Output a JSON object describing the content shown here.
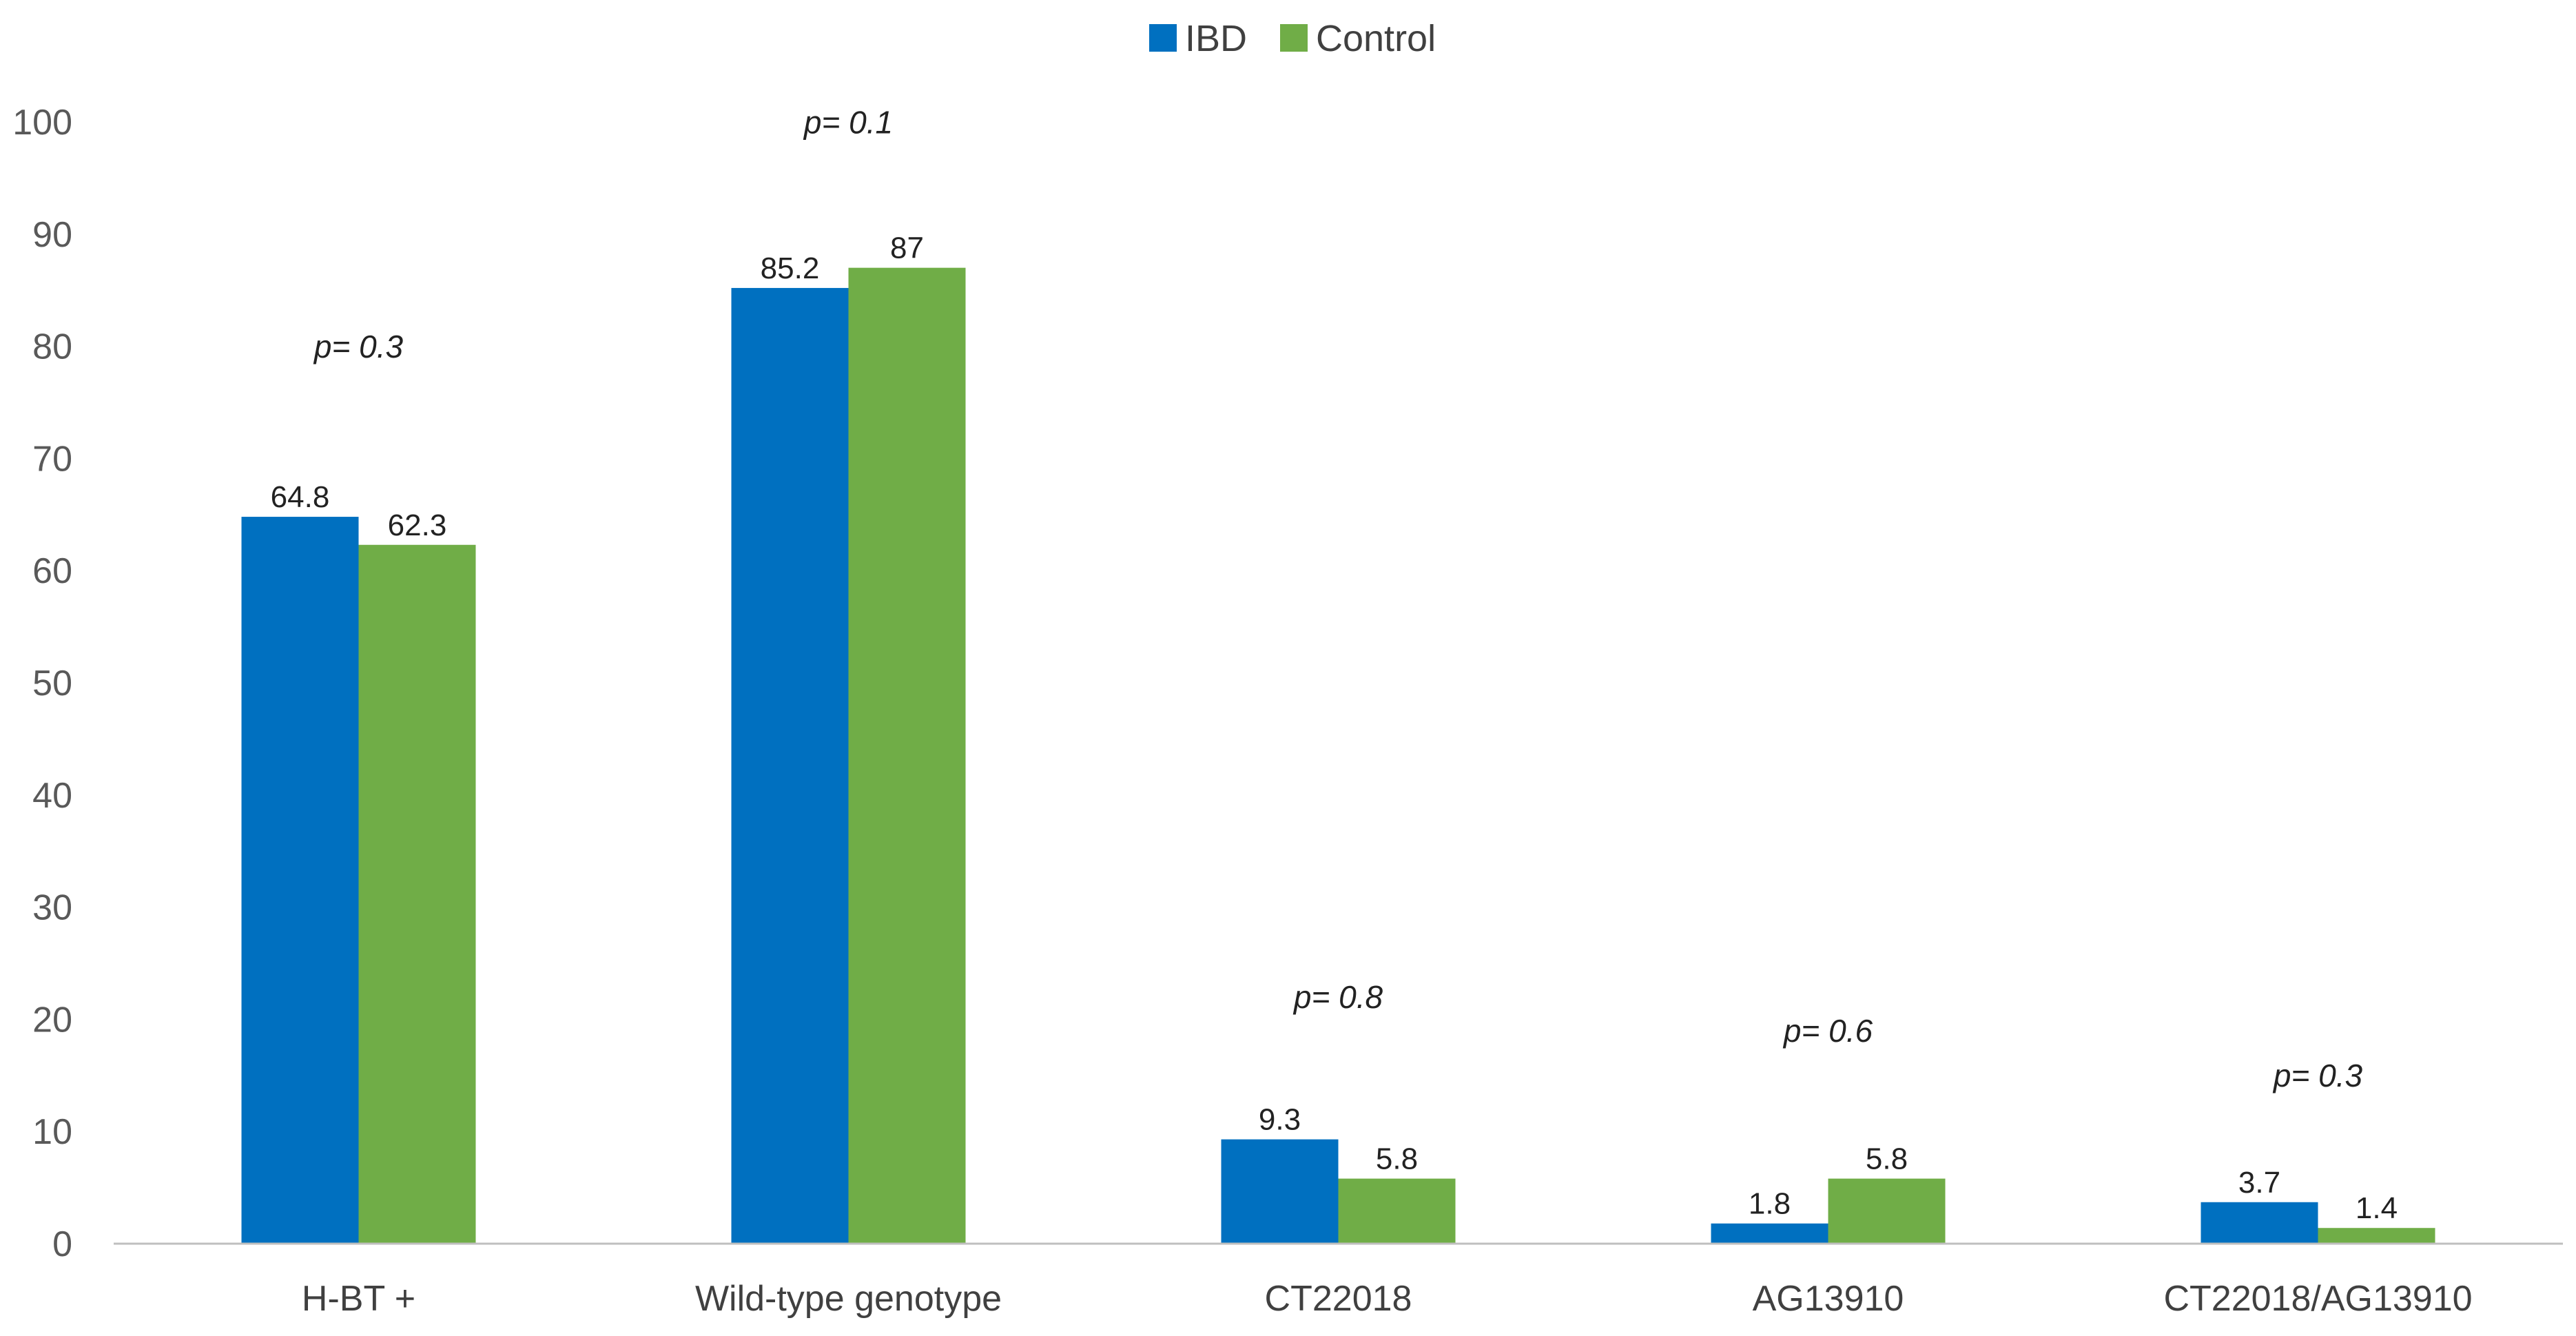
{
  "chart_data": {
    "type": "bar",
    "categories": [
      "H-BT +",
      "Wild-type genotype",
      "CT22018",
      "AG13910",
      "CT22018/AG13910"
    ],
    "series": [
      {
        "name": "IBD",
        "values": [
          64.8,
          85.2,
          9.3,
          1.8,
          3.7
        ],
        "color": "#0070C0"
      },
      {
        "name": "Control",
        "values": [
          62.3,
          87,
          5.8,
          5.8,
          1.4
        ],
        "color": "#70AD47"
      }
    ],
    "data_labels": [
      [
        "64.8",
        "85.2",
        "9.3",
        "1.8",
        "3.7"
      ],
      [
        "62.3",
        "87",
        "5.8",
        "5.8",
        "1.4"
      ]
    ],
    "p_values": [
      "0.3",
      "0.1",
      "0.8",
      "0.6",
      "0.3"
    ],
    "p_value_anchor": [
      79,
      99,
      21,
      18,
      14
    ],
    "p_prefix": "p= ",
    "yticks": [
      "0",
      "10",
      "20",
      "30",
      "40",
      "50",
      "60",
      "70",
      "80",
      "90",
      "100"
    ],
    "ylim": [
      0,
      100
    ],
    "grid": false,
    "legend_position": "top-center",
    "title": "",
    "xlabel": "",
    "ylabel": ""
  }
}
